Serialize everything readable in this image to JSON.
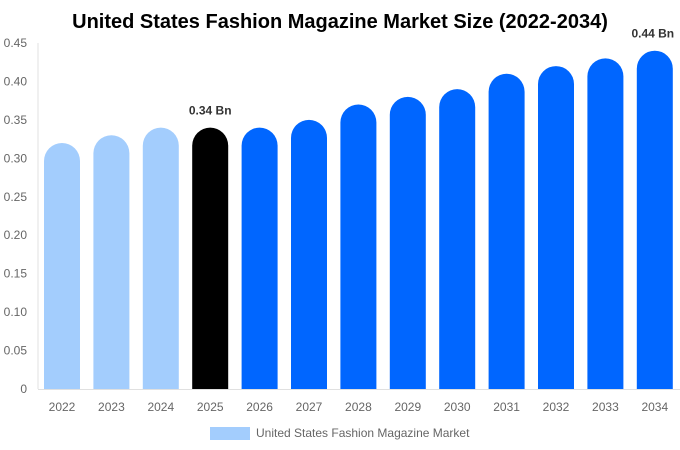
{
  "chart_data": {
    "type": "bar",
    "title": "United States Fashion Magazine Market Size (2022-2034)",
    "categories": [
      "2022",
      "2023",
      "2024",
      "2025",
      "2026",
      "2027",
      "2028",
      "2029",
      "2030",
      "2031",
      "2032",
      "2033",
      "2034"
    ],
    "series": [
      {
        "name": "United States Fashion Magazine Market",
        "values": [
          0.32,
          0.33,
          0.34,
          0.34,
          0.34,
          0.35,
          0.37,
          0.38,
          0.39,
          0.41,
          0.42,
          0.43,
          0.44
        ]
      }
    ],
    "bar_colors": [
      "#a3cdfd",
      "#a3cdfd",
      "#a3cdfd",
      "#000000",
      "#0066ff",
      "#0066ff",
      "#0066ff",
      "#0066ff",
      "#0066ff",
      "#0066ff",
      "#0066ff",
      "#0066ff",
      "#0066ff"
    ],
    "data_labels": {
      "3": "0.34 Bn",
      "12": "0.44 Bn"
    },
    "ylim": [
      0,
      0.45
    ],
    "yticks": [
      "0",
      "0.05",
      "0.10",
      "0.15",
      "0.20",
      "0.25",
      "0.30",
      "0.35",
      "0.40",
      "0.45"
    ],
    "xlabel": "",
    "ylabel": "",
    "grid": false,
    "legend_position": "bottom",
    "legend_color": "#a3cdfd"
  }
}
